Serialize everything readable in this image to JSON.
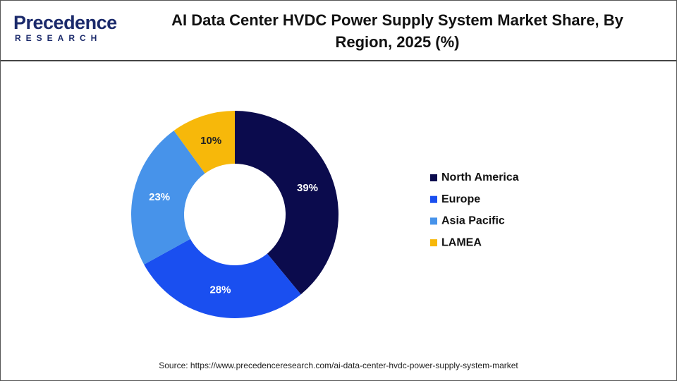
{
  "logo": {
    "name": "Precedence",
    "tagline": "RESEARCH"
  },
  "chart_data": {
    "type": "donut",
    "title": "AI Data Center HVDC Power Supply System Market Share, By Region, 2025 (%)",
    "categories": [
      "North America",
      "Europe",
      "Asia Pacific",
      "LAMEA"
    ],
    "values": [
      39,
      28,
      23,
      10
    ],
    "value_labels": [
      "39%",
      "28%",
      "23%",
      "10%"
    ],
    "colors": [
      "#0b0b4d",
      "#1a4ff0",
      "#4793ea",
      "#f7b80a"
    ],
    "legend": "right",
    "source": "Source: https://www.precedenceresearch.com/ai-data-center-hvdc-power-supply-system-market"
  }
}
